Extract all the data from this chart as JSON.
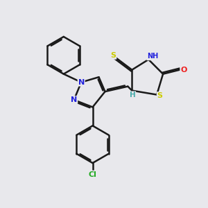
{
  "background_color": "#e8e8ec",
  "atom_colors": {
    "C": "#000000",
    "N": "#2020dd",
    "S": "#cccc00",
    "O": "#ee2020",
    "Cl": "#22aa22",
    "H": "#4aabab"
  },
  "bond_color": "#1a1a1a",
  "lw": 1.8
}
